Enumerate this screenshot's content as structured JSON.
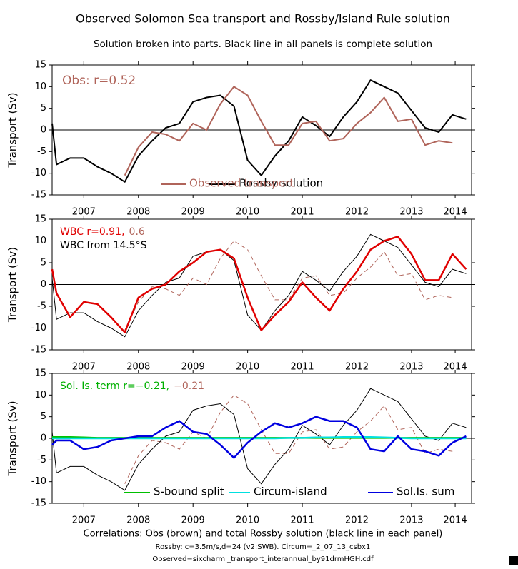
{
  "title": "Observed Solomon Sea transport and Rossby/Island Rule solution",
  "subtitle": "Solution broken into parts. Black line in all panels is complete solution",
  "footer": [
    "Correlations: Obs (brown) and total Rossby solution (black line in each panel)",
    "Rossby: c=3.5m/s,d=24 (v2:SWB). Circum=_2_07_13_csbx1",
    "Observed=sixcharmi_transport_interannual_by91drmHGH.cdf"
  ],
  "chart_data": [
    {
      "type": "line",
      "ylabel": "Transport (Sv)",
      "annotations": [
        {
          "text": "Obs: r=0.52",
          "color": "#b0645a"
        }
      ],
      "legend": "bottom",
      "x": [
        2006.92,
        2007,
        2007.25,
        2007.5,
        2007.75,
        2008,
        2008.25,
        2008.5,
        2008.75,
        2009,
        2009.25,
        2009.5,
        2009.75,
        2010,
        2010.25,
        2010.5,
        2010.75,
        2011,
        2011.25,
        2011.5,
        2011.75,
        2012,
        2012.25,
        2012.5,
        2012.75,
        2013,
        2013.25,
        2013.5,
        2013.75,
        2014,
        2014.25,
        2014.5
      ],
      "xlim": [
        2006.92,
        2014.6
      ],
      "xticks": [
        {
          "value": 2007.5,
          "label": "2007"
        },
        {
          "value": 2008.5,
          "label": "2008"
        },
        {
          "value": 2009.5,
          "label": "2009"
        },
        {
          "value": 2010.5,
          "label": "2010"
        },
        {
          "value": 2011.5,
          "label": "2011"
        },
        {
          "value": 2012.5,
          "label": "2012"
        },
        {
          "value": 2013.5,
          "label": "2013"
        },
        {
          "value": 2014.3,
          "label": "2014"
        }
      ],
      "ylim": [
        -15,
        15
      ],
      "yticks": [
        -15,
        -10,
        -5,
        0,
        5,
        10,
        15
      ],
      "series": [
        {
          "name": "Rossby solution",
          "color": "#000000",
          "values": [
            1.5,
            -8,
            -6.5,
            -6.5,
            -8.5,
            -10,
            -12,
            -6,
            -2.5,
            0.5,
            1.5,
            6.5,
            7.5,
            8,
            5.5,
            -7,
            -10.5,
            -6,
            -2.5,
            3,
            1,
            -1.5,
            3,
            6.5,
            11.5,
            10,
            8.5,
            4.5,
            0.5,
            -0.5,
            3.5,
            2.5
          ]
        },
        {
          "name": "Observed transport",
          "color": "#b0645a",
          "values": [
            null,
            null,
            null,
            null,
            null,
            null,
            -10.5,
            -4,
            -0.5,
            -1,
            -2.5,
            1.5,
            0,
            6,
            10,
            8,
            2,
            -3.5,
            -3.5,
            1.5,
            2,
            -2.5,
            -2,
            1.5,
            4,
            7.5,
            2,
            2.5,
            -3.5,
            -2.5,
            -3,
            null
          ]
        }
      ]
    },
    {
      "type": "line",
      "ylabel": "Transport (Sv)",
      "annotations": [
        {
          "text": "WBC r=0.91,",
          "color": "#e00000"
        },
        {
          "text": "0.6",
          "color": "#b0645a"
        },
        {
          "text": "WBC from 14.5°S",
          "color": "#000000"
        }
      ],
      "x": [
        2006.92,
        2007,
        2007.25,
        2007.5,
        2007.75,
        2008,
        2008.25,
        2008.5,
        2008.75,
        2009,
        2009.25,
        2009.5,
        2009.75,
        2010,
        2010.25,
        2010.5,
        2010.75,
        2011,
        2011.25,
        2011.5,
        2011.75,
        2012,
        2012.25,
        2012.5,
        2012.75,
        2013,
        2013.25,
        2013.5,
        2013.75,
        2014,
        2014.25,
        2014.5
      ],
      "xlim": [
        2006.92,
        2014.6
      ],
      "xticks": [
        {
          "value": 2007.5,
          "label": "2007"
        },
        {
          "value": 2008.5,
          "label": "2008"
        },
        {
          "value": 2009.5,
          "label": "2009"
        },
        {
          "value": 2010.5,
          "label": "2010"
        },
        {
          "value": 2011.5,
          "label": "2011"
        },
        {
          "value": 2012.5,
          "label": "2012"
        },
        {
          "value": 2013.5,
          "label": "2013"
        },
        {
          "value": 2014.3,
          "label": "2014"
        }
      ],
      "ylim": [
        -15,
        15
      ],
      "yticks": [
        -15,
        -10,
        -5,
        0,
        5,
        10,
        15
      ],
      "series": [
        {
          "color": "#e00000",
          "values": [
            3.5,
            -2,
            -7.5,
            -4,
            -4.5,
            -7.5,
            -11,
            -3,
            -1,
            0,
            3,
            5,
            7.5,
            8,
            6,
            -3,
            -10.5,
            -7,
            -4,
            0.5,
            -3,
            -6,
            -1,
            3,
            8,
            10,
            11,
            7,
            1,
            1,
            7,
            3.5
          ]
        }
      ]
    },
    {
      "type": "line",
      "ylabel": "Transport (Sv)",
      "annotations": [
        {
          "text": "Sol. Is. term r=−0.21,",
          "color": "#00b000"
        },
        {
          "text": "−0.21",
          "color": "#b0645a"
        }
      ],
      "legend": "bottom",
      "x": [
        2006.92,
        2007,
        2007.25,
        2007.5,
        2007.75,
        2008,
        2008.25,
        2008.5,
        2008.75,
        2009,
        2009.25,
        2009.5,
        2009.75,
        2010,
        2010.25,
        2010.5,
        2010.75,
        2011,
        2011.25,
        2011.5,
        2011.75,
        2012,
        2012.25,
        2012.5,
        2012.75,
        2013,
        2013.25,
        2013.5,
        2013.75,
        2014,
        2014.25,
        2014.5
      ],
      "xlim": [
        2006.92,
        2014.6
      ],
      "xticks": [
        {
          "value": 2007.5,
          "label": "2007"
        },
        {
          "value": 2008.5,
          "label": "2008"
        },
        {
          "value": 2009.5,
          "label": "2009"
        },
        {
          "value": 2010.5,
          "label": "2010"
        },
        {
          "value": 2011.5,
          "label": "2011"
        },
        {
          "value": 2012.5,
          "label": "2012"
        },
        {
          "value": 2013.5,
          "label": "2013"
        },
        {
          "value": 2014.3,
          "label": "2014"
        }
      ],
      "ylim": [
        -15,
        15
      ],
      "yticks": [
        -15,
        -10,
        -5,
        0,
        5,
        10,
        15
      ],
      "series": [
        {
          "name": "S-bound split",
          "color": "#00c000",
          "values": [
            0.3,
            0.3,
            0.3,
            0.2,
            0.1,
            0.1,
            0.1,
            0.1,
            0.1,
            0.1,
            0.1,
            0.1,
            0.1,
            0.1,
            0.1,
            0.1,
            0.1,
            0.1,
            0.1,
            0.1,
            0.1,
            0.1,
            0.1,
            0.1,
            0.1,
            0.1,
            0.1,
            0.1,
            0.1,
            0.1,
            0.1,
            0.1
          ]
        },
        {
          "name": "Circum-island",
          "color": "#00e0e0",
          "values": [
            0,
            0,
            0,
            0,
            0,
            0,
            0,
            0,
            0,
            0,
            0,
            0,
            0,
            0,
            0,
            0,
            0,
            0,
            0.1,
            0.1,
            0.2,
            0.2,
            0.3,
            0.3,
            0.3,
            0.2,
            0.1,
            0,
            0,
            0,
            0,
            0
          ]
        },
        {
          "name": "Sol.Is. sum",
          "color": "#0000e0",
          "values": [
            -1.5,
            -0.5,
            -0.5,
            -2.5,
            -2,
            -0.5,
            0,
            0.5,
            0.5,
            2.5,
            4,
            1.5,
            1,
            -1.5,
            -4.5,
            -1,
            1.5,
            3.5,
            2.5,
            3.5,
            5,
            4,
            4,
            2.5,
            -2.5,
            -3,
            0.5,
            -2.5,
            -3,
            -4,
            -1,
            0.5
          ]
        }
      ]
    }
  ]
}
